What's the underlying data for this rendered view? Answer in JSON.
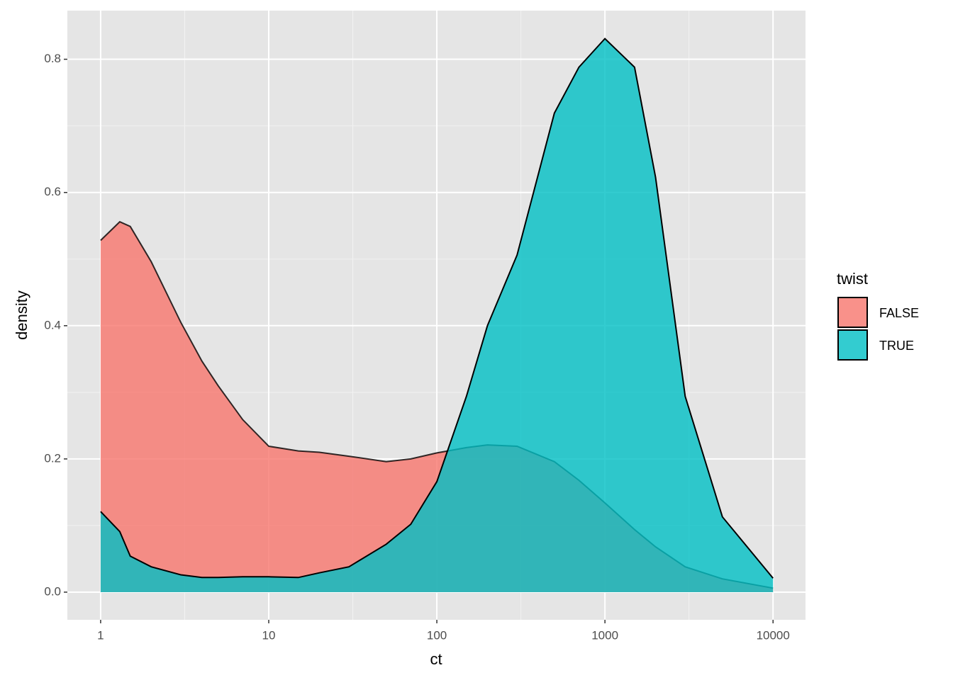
{
  "chart_data": {
    "type": "density",
    "x_label": "ct",
    "y_label": "density",
    "legend_title": "twist",
    "legend_position": "right",
    "x_scale": "log",
    "grid": true,
    "xlim": [
      0.634,
      15600
    ],
    "ylim": [
      -0.0415,
      0.873
    ],
    "xticks": [
      1,
      10,
      100,
      1000,
      10000
    ],
    "yticks": [
      {
        "value": 0,
        "label": "0.0"
      },
      {
        "value": 0.2,
        "label": "0.2"
      },
      {
        "value": 0.4,
        "label": "0.4"
      },
      {
        "value": 0.6,
        "label": "0.6"
      },
      {
        "value": 0.8,
        "label": "0.8"
      }
    ],
    "x": [
      1,
      1.3,
      1.5,
      2,
      3,
      4,
      5,
      7,
      10,
      15,
      20,
      30,
      50,
      70,
      100,
      150,
      200,
      300,
      500,
      700,
      1000,
      1500,
      2000,
      3000,
      5000,
      10000
    ],
    "series": [
      {
        "name": "FALSE",
        "color": "#F8766D",
        "values": [
          0.528,
          0.556,
          0.549,
          0.496,
          0.405,
          0.347,
          0.31,
          0.259,
          0.219,
          0.212,
          0.21,
          0.204,
          0.196,
          0.2,
          0.209,
          0.217,
          0.221,
          0.219,
          0.196,
          0.168,
          0.134,
          0.094,
          0.068,
          0.038,
          0.02,
          0.006
        ]
      },
      {
        "name": "TRUE",
        "color": "#00BFC4",
        "values": [
          0.121,
          0.091,
          0.054,
          0.038,
          0.026,
          0.022,
          0.022,
          0.023,
          0.023,
          0.022,
          0.029,
          0.038,
          0.072,
          0.102,
          0.166,
          0.294,
          0.4,
          0.506,
          0.719,
          0.788,
          0.831,
          0.788,
          0.623,
          0.294,
          0.113,
          0.021
        ]
      }
    ]
  }
}
